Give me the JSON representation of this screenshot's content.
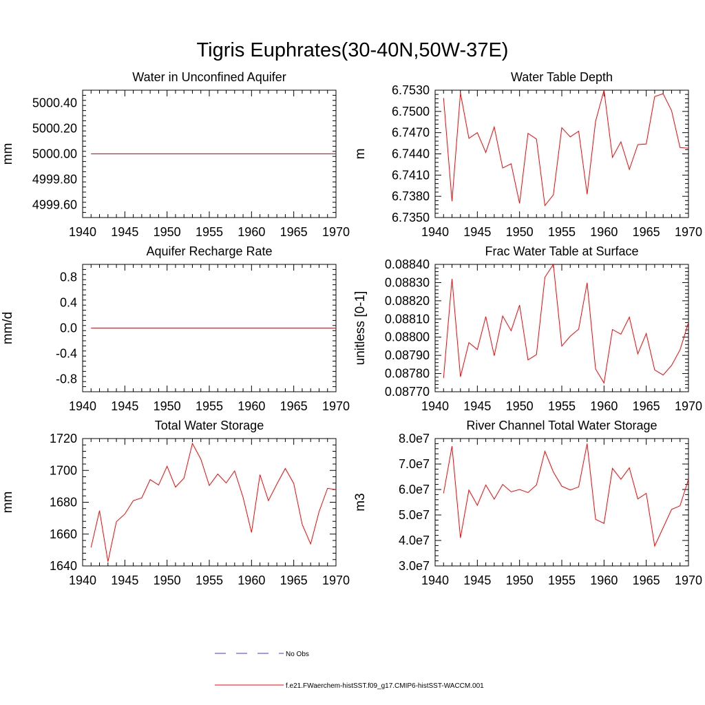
{
  "figure": {
    "title": "Tigris Euphrates(30-40N,50W-37E)"
  },
  "legend": {
    "obs_label": "No Obs",
    "obs_color": "#3b3bd6",
    "model_label": "f.e21.FWaerchem-histSST.f09_g17.CMIP6-histSST-WACCM.001",
    "model_color": "#ff0000"
  },
  "chart_data": [
    {
      "type": "line",
      "title": "Water in Unconfined Aquifer",
      "ylabel": "mm",
      "xlim": [
        1940,
        1970
      ],
      "ylim": [
        4999.5,
        5000.5
      ],
      "xticks": [
        1940,
        1945,
        1950,
        1955,
        1960,
        1965,
        1970
      ],
      "xtick_labels": [
        "1940",
        "1945",
        "1950",
        "1955",
        "1960",
        "1965",
        "1970"
      ],
      "yticks": [
        4999.6,
        4999.8,
        5000.0,
        5000.2,
        5000.4
      ],
      "ytick_labels": [
        "4999.60",
        "4999.80",
        "5000.00",
        "5000.20",
        "5000.40"
      ],
      "x": [
        1941,
        1942,
        1943,
        1944,
        1945,
        1946,
        1947,
        1948,
        1949,
        1950,
        1951,
        1952,
        1953,
        1954,
        1955,
        1956,
        1957,
        1958,
        1959,
        1960,
        1961,
        1962,
        1963,
        1964,
        1965,
        1966,
        1967,
        1968,
        1969,
        1970
      ],
      "series": [
        {
          "values": [
            5000,
            5000,
            5000,
            5000,
            5000,
            5000,
            5000,
            5000,
            5000,
            5000,
            5000,
            5000,
            5000,
            5000,
            5000,
            5000,
            5000,
            5000,
            5000,
            5000,
            5000,
            5000,
            5000,
            5000,
            5000,
            5000,
            5000,
            5000,
            5000,
            5000
          ]
        }
      ]
    },
    {
      "type": "line",
      "title": "Water Table Depth",
      "ylabel": "m",
      "xlim": [
        1940,
        1970
      ],
      "ylim": [
        6.735,
        6.753
      ],
      "xticks": [
        1940,
        1945,
        1950,
        1955,
        1960,
        1965,
        1970
      ],
      "xtick_labels": [
        "1940",
        "1945",
        "1950",
        "1955",
        "1960",
        "1965",
        "1970"
      ],
      "yticks": [
        6.735,
        6.738,
        6.741,
        6.744,
        6.747,
        6.75,
        6.753
      ],
      "ytick_labels": [
        "6.7350",
        "6.7380",
        "6.7410",
        "6.7440",
        "6.7470",
        "6.7500",
        "6.7530"
      ],
      "x": [
        1941,
        1942,
        1943,
        1944,
        1945,
        1946,
        1947,
        1948,
        1949,
        1950,
        1951,
        1952,
        1953,
        1954,
        1955,
        1956,
        1957,
        1958,
        1959,
        1960,
        1961,
        1962,
        1963,
        1964,
        1965,
        1966,
        1967,
        1968,
        1969,
        1970
      ],
      "series": [
        {
          "values": [
            6.7519,
            6.7373,
            6.7526,
            6.7462,
            6.747,
            6.7442,
            6.7478,
            6.742,
            6.7426,
            6.737,
            6.7469,
            6.7461,
            6.7367,
            6.7382,
            6.7477,
            6.7464,
            6.7472,
            6.7383,
            6.7486,
            6.753,
            6.7435,
            6.7457,
            6.7418,
            6.7453,
            6.7454,
            6.7521,
            6.7525,
            6.7501,
            6.7449,
            6.7448
          ]
        }
      ]
    },
    {
      "type": "line",
      "title": "Aquifer Recharge Rate",
      "ylabel": "mm/d",
      "xlim": [
        1940,
        1970
      ],
      "ylim": [
        -1.0,
        1.0
      ],
      "xticks": [
        1940,
        1945,
        1950,
        1955,
        1960,
        1965,
        1970
      ],
      "xtick_labels": [
        "1940",
        "1945",
        "1950",
        "1955",
        "1960",
        "1965",
        "1970"
      ],
      "yticks": [
        -0.8,
        -0.4,
        0.0,
        0.4,
        0.8
      ],
      "ytick_labels": [
        "-0.8",
        "-0.4",
        "0.0",
        "0.4",
        "0.8"
      ],
      "x": [
        1941,
        1942,
        1943,
        1944,
        1945,
        1946,
        1947,
        1948,
        1949,
        1950,
        1951,
        1952,
        1953,
        1954,
        1955,
        1956,
        1957,
        1958,
        1959,
        1960,
        1961,
        1962,
        1963,
        1964,
        1965,
        1966,
        1967,
        1968,
        1969,
        1970
      ],
      "series": [
        {
          "values": [
            0,
            0,
            0,
            0,
            0,
            0,
            0,
            0,
            0,
            0,
            0,
            0,
            0,
            0,
            0,
            0,
            0,
            0,
            0,
            0,
            0,
            0,
            0,
            0,
            0,
            0,
            0,
            0,
            0,
            0
          ]
        }
      ]
    },
    {
      "type": "line",
      "title": "Frac Water Table at Surface",
      "ylabel": "unitless [0-1]",
      "xlim": [
        1940,
        1970
      ],
      "ylim": [
        0.0877,
        0.0884
      ],
      "xticks": [
        1940,
        1945,
        1950,
        1955,
        1960,
        1965,
        1970
      ],
      "xtick_labels": [
        "1940",
        "1945",
        "1950",
        "1955",
        "1960",
        "1965",
        "1970"
      ],
      "yticks": [
        0.0877,
        0.0878,
        0.0879,
        0.088,
        0.0881,
        0.0882,
        0.0883,
        0.0884
      ],
      "ytick_labels": [
        "0.08770",
        "0.08780",
        "0.08790",
        "0.08800",
        "0.08810",
        "0.08820",
        "0.08830",
        "0.08840"
      ],
      "x": [
        1941,
        1942,
        1943,
        1944,
        1945,
        1946,
        1947,
        1948,
        1949,
        1950,
        1951,
        1952,
        1953,
        1954,
        1955,
        1956,
        1957,
        1958,
        1959,
        1960,
        1961,
        1962,
        1963,
        1964,
        1965,
        1966,
        1967,
        1968,
        1969,
        1970
      ],
      "series": [
        {
          "values": [
            0.087775,
            0.08832,
            0.087782,
            0.08797,
            0.087932,
            0.088113,
            0.087898,
            0.088116,
            0.088035,
            0.088176,
            0.087875,
            0.087904,
            0.088329,
            0.0884,
            0.087951,
            0.088005,
            0.088044,
            0.088299,
            0.087825,
            0.087748,
            0.088042,
            0.088016,
            0.08811,
            0.087908,
            0.08802,
            0.08782,
            0.087792,
            0.087845,
            0.08793,
            0.08808
          ]
        }
      ]
    },
    {
      "type": "line",
      "title": "Total Water Storage",
      "ylabel": "mm",
      "xlim": [
        1940,
        1970
      ],
      "ylim": [
        1640,
        1720
      ],
      "xticks": [
        1940,
        1945,
        1950,
        1955,
        1960,
        1965,
        1970
      ],
      "xtick_labels": [
        "1940",
        "1945",
        "1950",
        "1955",
        "1960",
        "1965",
        "1970"
      ],
      "yticks": [
        1640,
        1660,
        1680,
        1700,
        1720
      ],
      "ytick_labels": [
        "1640",
        "1660",
        "1680",
        "1700",
        "1720"
      ],
      "x": [
        1941,
        1942,
        1943,
        1944,
        1945,
        1946,
        1947,
        1948,
        1949,
        1950,
        1951,
        1952,
        1953,
        1954,
        1955,
        1956,
        1957,
        1958,
        1959,
        1960,
        1961,
        1962,
        1963,
        1964,
        1965,
        1966,
        1967,
        1968,
        1969,
        1970
      ],
      "series": [
        {
          "values": [
            1651.6,
            1674.7,
            1642.7,
            1667.8,
            1672.6,
            1681.0,
            1682.7,
            1694.2,
            1690.8,
            1702.6,
            1689.5,
            1695.1,
            1716.9,
            1707.1,
            1690.5,
            1697.7,
            1692.1,
            1699.7,
            1683.1,
            1661.0,
            1697.3,
            1681.0,
            1691.4,
            1701.2,
            1691.8,
            1666.1,
            1653.8,
            1674.1,
            1688.7,
            1688.0
          ]
        }
      ]
    },
    {
      "type": "line",
      "title": "River Channel Total Water Storage",
      "ylabel": "m3",
      "xlim": [
        1940,
        1970
      ],
      "ylim": [
        30000000,
        80000000
      ],
      "xticks": [
        1940,
        1945,
        1950,
        1955,
        1960,
        1965,
        1970
      ],
      "xtick_labels": [
        "1940",
        "1945",
        "1950",
        "1955",
        "1960",
        "1965",
        "1970"
      ],
      "yticks": [
        30000000,
        40000000,
        50000000,
        60000000,
        70000000,
        80000000
      ],
      "ytick_labels": [
        "3.0e7",
        "4.0e7",
        "5.0e7",
        "6.0e7",
        "7.0e7",
        "8.0e7"
      ],
      "x": [
        1941,
        1942,
        1943,
        1944,
        1945,
        1946,
        1947,
        1948,
        1949,
        1950,
        1951,
        1952,
        1953,
        1954,
        1955,
        1956,
        1957,
        1958,
        1959,
        1960,
        1961,
        1962,
        1963,
        1964,
        1965,
        1966,
        1967,
        1968,
        1969,
        1970
      ],
      "series": [
        {
          "values": [
            58500000,
            77000000,
            41000000,
            59800000,
            53800000,
            61800000,
            56200000,
            62000000,
            59100000,
            60000000,
            58800000,
            61800000,
            75000000,
            66900000,
            61300000,
            59800000,
            61000000,
            78000000,
            48300000,
            46700000,
            68300000,
            64000000,
            68500000,
            56300000,
            58500000,
            37800000,
            45000000,
            52200000,
            53600000,
            64000000
          ]
        }
      ]
    }
  ]
}
